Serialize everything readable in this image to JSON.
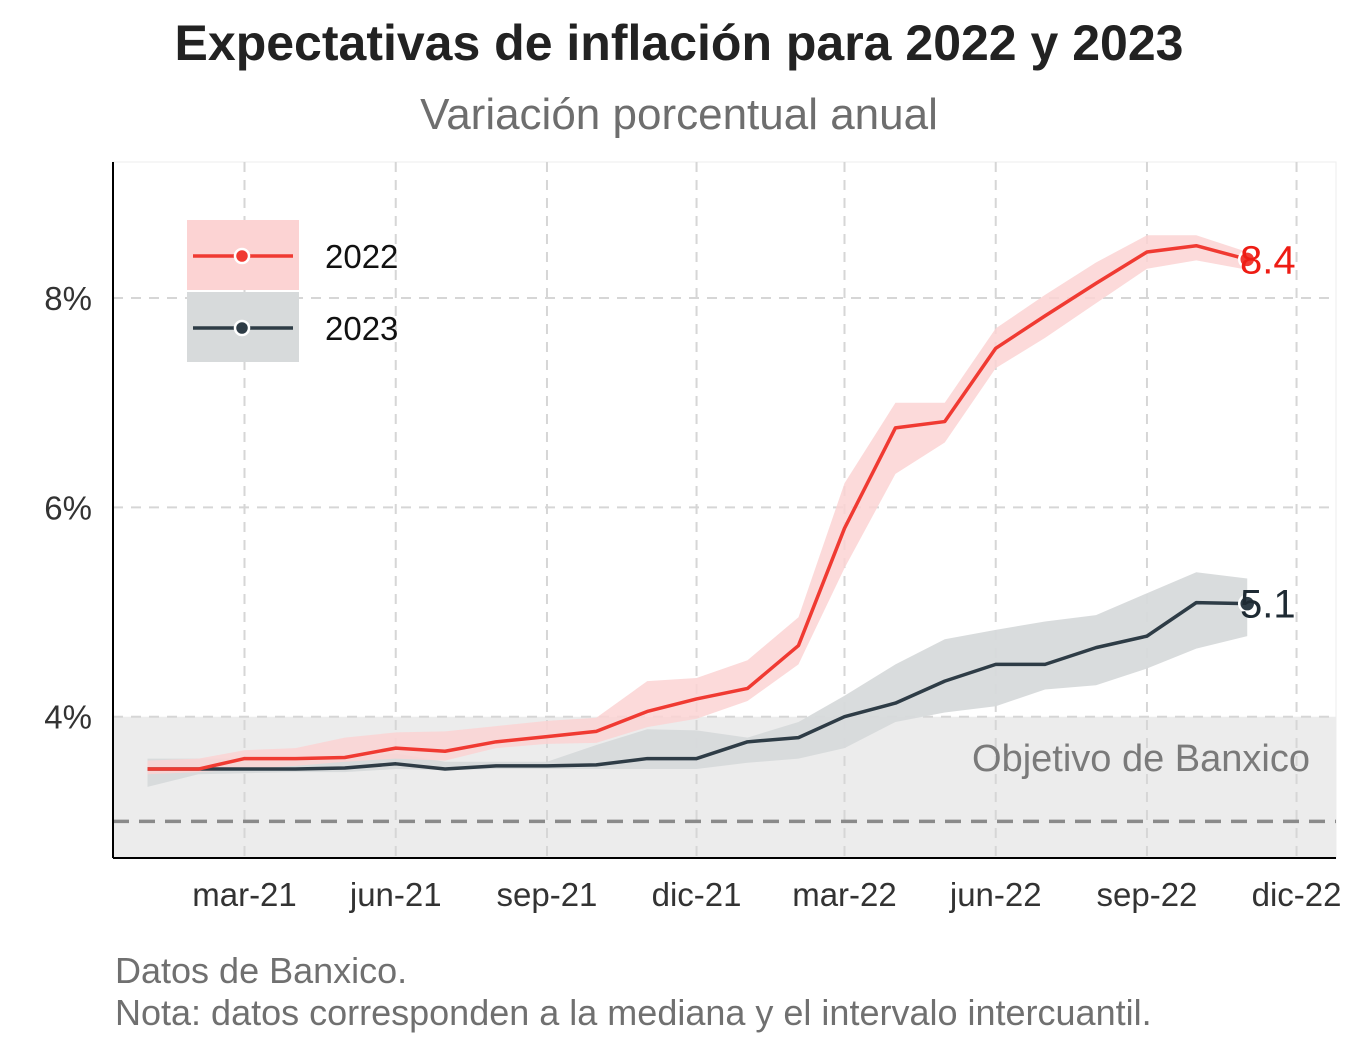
{
  "title": "Expectativas de inflación para 2022 y 2023",
  "subtitle": "Variación porcentual anual",
  "caption": {
    "line1": "Datos de Banxico.",
    "line2": "Nota: datos corresponden a la mediana y el intervalo intercuantil."
  },
  "colors": {
    "series_2022": "#f03a32",
    "series_2022_band": "#fcd3d3",
    "series_2023": "#2e3c46",
    "series_2023_band": "#d7dadb",
    "target_band": "#ececec",
    "target_line": "#8a8a8a",
    "label_2022": "#ee1c14",
    "label_2023": "#1e2a33",
    "grid": "#d6d6d6"
  },
  "chart_data": {
    "type": "line",
    "title": "Expectativas de inflación para 2022 y 2023",
    "subtitle": "Variación porcentual anual",
    "xlabel": "",
    "ylabel": "",
    "x": [
      "2021-01-01",
      "2021-02-01",
      "2021-03-01",
      "2021-04-01",
      "2021-05-01",
      "2021-06-01",
      "2021-07-01",
      "2021-08-01",
      "2021-09-01",
      "2021-10-01",
      "2021-11-01",
      "2021-12-01",
      "2022-01-01",
      "2022-02-01",
      "2022-03-01",
      "2022-04-01",
      "2022-05-01",
      "2022-06-01",
      "2022-07-01",
      "2022-08-01",
      "2022-09-01",
      "2022-10-01",
      "2022-11-01"
    ],
    "x_ticks": [
      "mar-21",
      "jun-21",
      "sep-21",
      "dic-21",
      "mar-22",
      "jun-22",
      "sep-22",
      "dic-22"
    ],
    "x_tick_dates": [
      "2021-03-01",
      "2021-06-01",
      "2021-09-01",
      "2021-12-01",
      "2022-03-01",
      "2022-06-01",
      "2022-09-01",
      "2022-12-01"
    ],
    "y_ticks": [
      4,
      6,
      8
    ],
    "y_tick_labels": [
      "4%",
      "6%",
      "8%"
    ],
    "ylim": [
      2.65,
      9.3
    ],
    "xlim": [
      "2020-12-11",
      "2022-12-25"
    ],
    "grid": true,
    "legend_placement": "top-left",
    "series": [
      {
        "name": "2022",
        "values": [
          3.5,
          3.5,
          3.6,
          3.6,
          3.61,
          3.7,
          3.67,
          3.76,
          3.81,
          3.86,
          4.05,
          4.17,
          4.27,
          4.68,
          5.8,
          6.76,
          6.82,
          7.52,
          7.83,
          8.14,
          8.44,
          8.5,
          8.37
        ],
        "q1": [
          3.45,
          3.47,
          3.5,
          3.53,
          3.57,
          3.6,
          3.58,
          3.7,
          3.74,
          3.75,
          3.9,
          3.98,
          4.15,
          4.5,
          5.42,
          6.32,
          6.62,
          7.33,
          7.62,
          7.95,
          8.28,
          8.36,
          8.27
        ],
        "q3": [
          3.58,
          3.6,
          3.68,
          3.7,
          3.8,
          3.85,
          3.86,
          3.91,
          3.96,
          3.99,
          4.34,
          4.37,
          4.54,
          4.95,
          6.23,
          7.0,
          7.0,
          7.71,
          8.03,
          8.34,
          8.6,
          8.6,
          8.44
        ],
        "last_label": "8.4"
      },
      {
        "name": "2023",
        "values": [
          3.5,
          3.5,
          3.5,
          3.5,
          3.51,
          3.55,
          3.5,
          3.53,
          3.53,
          3.54,
          3.6,
          3.6,
          3.76,
          3.8,
          4.0,
          4.13,
          4.34,
          4.5,
          4.5,
          4.66,
          4.77,
          5.09,
          5.08
        ],
        "q1": [
          3.33,
          3.45,
          3.46,
          3.47,
          3.47,
          3.5,
          3.49,
          3.5,
          3.5,
          3.5,
          3.5,
          3.5,
          3.56,
          3.6,
          3.7,
          3.95,
          4.04,
          4.1,
          4.26,
          4.3,
          4.46,
          4.65,
          4.77
        ],
        "q3": [
          3.6,
          3.6,
          3.6,
          3.6,
          3.6,
          3.65,
          3.57,
          3.57,
          3.57,
          3.73,
          3.88,
          3.87,
          3.8,
          3.95,
          4.2,
          4.5,
          4.74,
          4.83,
          4.91,
          4.97,
          5.18,
          5.38,
          5.32
        ],
        "last_label": "5.1"
      }
    ],
    "annotations": [
      {
        "text": "Objetivo de Banxico",
        "band": [
          2,
          4
        ],
        "line": 3
      }
    ]
  }
}
